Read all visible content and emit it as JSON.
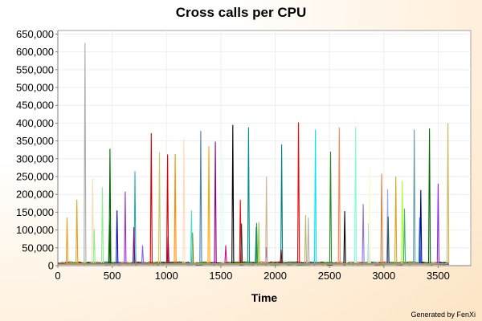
{
  "chart_data": {
    "type": "line",
    "title": "Cross calls per CPU",
    "xlabel": "Time",
    "ylabel": "",
    "xlim": [
      0,
      3800
    ],
    "ylim": [
      0,
      660000
    ],
    "grid": true,
    "legend": "none",
    "x_ticks": [
      0,
      500,
      1000,
      1500,
      2000,
      2500,
      3000,
      3500
    ],
    "x_tick_labels": [
      "0",
      "500",
      "1000",
      "1500",
      "2000",
      "2500",
      "3000",
      "3500"
    ],
    "y_ticks": [
      0,
      50000,
      100000,
      150000,
      200000,
      250000,
      300000,
      350000,
      400000,
      450000,
      500000,
      550000,
      600000,
      650000
    ],
    "y_tick_labels": [
      "0",
      "50,000",
      "100,000",
      "150,000",
      "200,000",
      "250,000",
      "300,000",
      "350,000",
      "400,000",
      "450,000",
      "500,000",
      "550,000",
      "600,000",
      "650,000"
    ],
    "x_end": 3600,
    "series": [
      {
        "color": "#e8a020",
        "spikes": [
          [
            85,
            135000
          ],
          [
            175,
            185000
          ]
        ]
      },
      {
        "color": "#aaaaaa",
        "spikes": [
          [
            250,
            625000
          ]
        ]
      },
      {
        "color": "#f5deb3",
        "spikes": [
          [
            320,
            245000
          ]
        ]
      },
      {
        "color": "#90ee90",
        "spikes": [
          [
            335,
            103000
          ],
          [
            410,
            220000
          ]
        ]
      },
      {
        "color": "#006400",
        "spikes": [
          [
            480,
            328000
          ],
          [
            475,
            130000
          ]
        ]
      },
      {
        "color": "#0000dd",
        "spikes": [
          [
            545,
            155000
          ]
        ]
      },
      {
        "color": "#9932cc",
        "spikes": [
          [
            620,
            208000
          ]
        ]
      },
      {
        "color": "#20b2aa",
        "spikes": [
          [
            710,
            265000
          ]
        ]
      },
      {
        "color": "#800080",
        "spikes": [
          [
            700,
            108000
          ],
          [
            1015,
            82000
          ]
        ]
      },
      {
        "color": "#7b68ee",
        "spikes": [
          [
            780,
            57000
          ]
        ]
      },
      {
        "color": "#dd0000",
        "spikes": [
          [
            860,
            372000
          ],
          [
            1010,
            312000
          ]
        ]
      },
      {
        "color": "#c8c864",
        "spikes": [
          [
            935,
            318000
          ]
        ]
      },
      {
        "color": "#ff8c00",
        "spikes": [
          [
            1080,
            313000
          ]
        ]
      },
      {
        "color": "#ffdab9",
        "spikes": [
          [
            1160,
            355000
          ]
        ]
      },
      {
        "color": "#808000",
        "spikes": [
          [
            1240,
            92000
          ]
        ]
      },
      {
        "color": "#40e0d0",
        "spikes": [
          [
            1230,
            155000
          ]
        ]
      },
      {
        "color": "#4682b4",
        "spikes": [
          [
            1315,
            378000
          ]
        ]
      },
      {
        "color": "#ffa500",
        "spikes": [
          [
            1390,
            335000
          ]
        ]
      },
      {
        "color": "#8b008b",
        "spikes": [
          [
            1450,
            348000
          ]
        ]
      },
      {
        "color": "#e0ffff",
        "spikes": [
          [
            1520,
            318000
          ]
        ]
      },
      {
        "color": "#c71585",
        "spikes": [
          [
            1545,
            57000
          ]
        ]
      },
      {
        "color": "#000000",
        "spikes": [
          [
            1610,
            395000
          ],
          [
            2640,
            153000
          ]
        ]
      },
      {
        "color": "#ff0000",
        "spikes": [
          [
            1680,
            185000
          ],
          [
            2215,
            402000
          ]
        ]
      },
      {
        "color": "#333333",
        "spikes": [
          [
            1690,
            118000
          ]
        ]
      },
      {
        "color": "#008b8b",
        "spikes": [
          [
            1755,
            388000
          ],
          [
            1825,
            108000
          ]
        ]
      },
      {
        "color": "#2e8b57",
        "spikes": [
          [
            1830,
            120000
          ]
        ]
      },
      {
        "color": "#9acd32",
        "spikes": [
          [
            1850,
            122000
          ]
        ]
      },
      {
        "color": "#6a5acd",
        "spikes": [
          [
            1920,
            52000
          ]
        ]
      },
      {
        "color": "#d2b48c",
        "spikes": [
          [
            1920,
            250000
          ]
        ]
      },
      {
        "color": "#008080",
        "spikes": [
          [
            2060,
            340000
          ]
        ]
      },
      {
        "color": "#8b0000",
        "spikes": [
          [
            2055,
            45000
          ]
        ]
      },
      {
        "color": "#bdb76b",
        "spikes": [
          [
            2280,
            142000
          ]
        ]
      },
      {
        "color": "#b0b0b0",
        "spikes": [
          [
            2305,
            135000
          ]
        ]
      },
      {
        "color": "#00e5ff",
        "spikes": [
          [
            2370,
            382000
          ]
        ]
      },
      {
        "color": "#228b22",
        "spikes": [
          [
            2510,
            320000
          ]
        ]
      },
      {
        "color": "#ff7f50",
        "spikes": [
          [
            2590,
            388000
          ]
        ]
      },
      {
        "color": "#7fffd4",
        "spikes": [
          [
            2740,
            390000
          ]
        ]
      },
      {
        "color": "#9370db",
        "spikes": [
          [
            2810,
            173000
          ]
        ]
      },
      {
        "color": "#87ceeb",
        "spikes": [
          [
            2860,
            120000
          ]
        ]
      },
      {
        "color": "#fffacd",
        "spikes": [
          [
            2870,
            278000
          ]
        ]
      },
      {
        "color": "#cd853f",
        "spikes": [
          [
            2980,
            258000
          ]
        ]
      },
      {
        "color": "#a0a0ff",
        "spikes": [
          [
            3035,
            215000
          ]
        ]
      },
      {
        "color": "#2f4f4f",
        "spikes": [
          [
            3040,
            138000
          ]
        ]
      },
      {
        "color": "#daa520",
        "spikes": [
          [
            3110,
            250000
          ]
        ]
      },
      {
        "color": "#adff2f",
        "spikes": [
          [
            3170,
            238000
          ]
        ]
      },
      {
        "color": "#3cb371",
        "spikes": [
          [
            3190,
            160000
          ]
        ]
      },
      {
        "color": "#5f9ea0",
        "spikes": [
          [
            3280,
            382000
          ]
        ]
      },
      {
        "color": "#1e90ff",
        "spikes": [
          [
            3330,
            135000
          ]
        ]
      },
      {
        "color": "#00008b",
        "spikes": [
          [
            3340,
            212000
          ]
        ]
      },
      {
        "color": "#006400",
        "spikes": [
          [
            3420,
            385000
          ]
        ]
      },
      {
        "color": "#8a2be2",
        "spikes": [
          [
            3500,
            230000
          ]
        ]
      },
      {
        "color": "#d2b45a",
        "spikes": [
          [
            3590,
            400000
          ]
        ]
      }
    ],
    "noise_colors": [
      "#ff0000",
      "#0000ff",
      "#008000",
      "#800080",
      "#ff69b4",
      "#00aaaa",
      "#ffa500",
      "#000000",
      "#00cc00",
      "#8b4513"
    ]
  },
  "credit": "Generated by FenXi"
}
